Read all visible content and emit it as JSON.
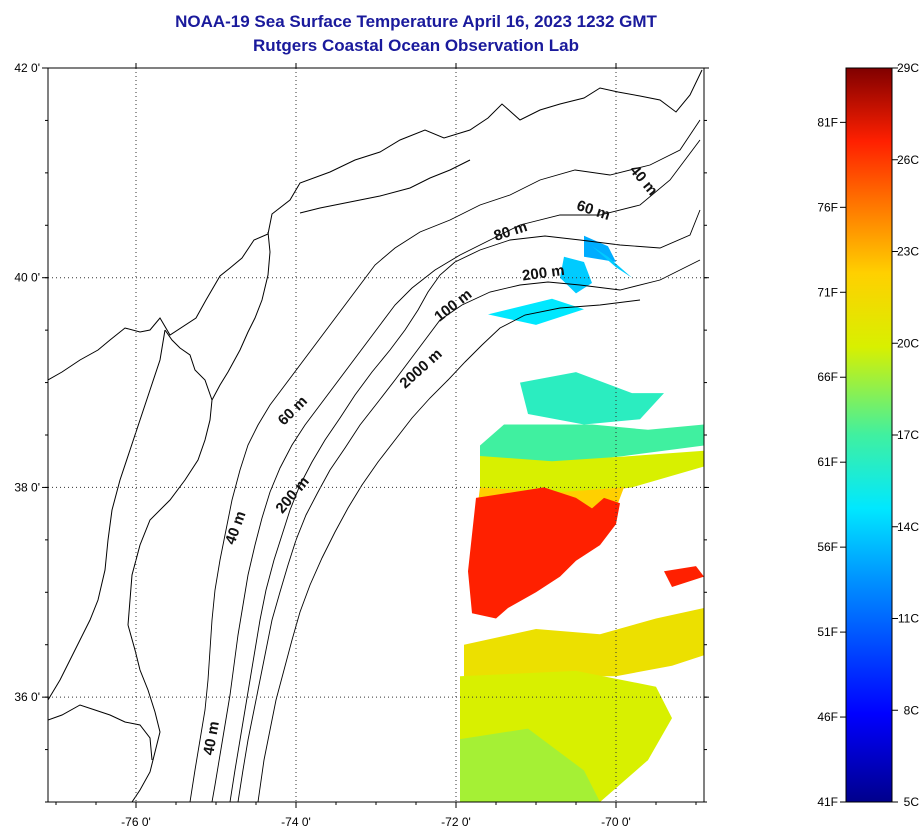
{
  "header": {
    "title": "NOAA-19 Sea Surface Temperature April 16, 2023 1232 GMT",
    "subtitle": "Rutgers Coastal Ocean Observation Lab"
  },
  "map": {
    "lon_range": [
      -77.1,
      -68.9
    ],
    "lat_range": [
      35.0,
      42.0
    ],
    "lon_ticks": [
      {
        "value": -76,
        "label": "-76 0'"
      },
      {
        "value": -74,
        "label": "-74 0'"
      },
      {
        "value": -72,
        "label": "-72 0'"
      },
      {
        "value": -70,
        "label": "-70 0'"
      }
    ],
    "lat_ticks": [
      {
        "value": 42,
        "label": "42 0'"
      },
      {
        "value": 40,
        "label": "40 0'"
      },
      {
        "value": 38,
        "label": "38 0'"
      },
      {
        "value": 36,
        "label": "36 0'"
      }
    ],
    "grid": "dotted",
    "isobath_labels": [
      {
        "text": "40 m",
        "lon": -69.7,
        "lat": 40.9,
        "rotate": 50
      },
      {
        "text": "60 m",
        "lon": -70.3,
        "lat": 40.6,
        "rotate": 18
      },
      {
        "text": "80 m",
        "lon": -71.3,
        "lat": 40.4,
        "rotate": -18
      },
      {
        "text": "200 m",
        "lon": -70.9,
        "lat": 40.0,
        "rotate": -8
      },
      {
        "text": "100 m",
        "lon": -72.0,
        "lat": 39.7,
        "rotate": -38
      },
      {
        "text": "2000 m",
        "lon": -72.4,
        "lat": 39.1,
        "rotate": -42
      },
      {
        "text": "60 m",
        "lon": -74.0,
        "lat": 38.7,
        "rotate": -45
      },
      {
        "text": "200 m",
        "lon": -74.0,
        "lat": 37.9,
        "rotate": -50
      },
      {
        "text": "40 m",
        "lon": -74.7,
        "lat": 37.6,
        "rotate": -70
      },
      {
        "text": "40 m",
        "lon": -75.0,
        "lat": 35.6,
        "rotate": -80
      }
    ],
    "sst_patches": [
      {
        "celsius": 12,
        "pts": [
          [
            -70.4,
            40.4
          ],
          [
            -70.1,
            40.3
          ],
          [
            -70.0,
            40.15
          ],
          [
            -70.4,
            40.2
          ]
        ]
      },
      {
        "celsius": 13,
        "pts": [
          [
            -70.3,
            40.3
          ],
          [
            -70.0,
            40.1
          ],
          [
            -69.8,
            40.0
          ],
          [
            -70.1,
            40.2
          ]
        ]
      },
      {
        "celsius": 13,
        "pts": [
          [
            -70.65,
            40.2
          ],
          [
            -70.4,
            40.15
          ],
          [
            -70.3,
            39.95
          ],
          [
            -70.5,
            39.85
          ],
          [
            -70.7,
            40.0
          ]
        ]
      },
      {
        "celsius": 14,
        "pts": [
          [
            -71.6,
            39.65
          ],
          [
            -70.8,
            39.8
          ],
          [
            -70.4,
            39.7
          ],
          [
            -71.0,
            39.55
          ]
        ]
      },
      {
        "celsius": 16,
        "pts": [
          [
            -71.2,
            39.0
          ],
          [
            -70.5,
            39.1
          ],
          [
            -69.8,
            38.9
          ],
          [
            -69.4,
            38.9
          ],
          [
            -69.7,
            38.65
          ],
          [
            -70.4,
            38.6
          ],
          [
            -71.1,
            38.7
          ]
        ]
      },
      {
        "celsius": 17,
        "pts": [
          [
            -71.4,
            38.6
          ],
          [
            -70.3,
            38.6
          ],
          [
            -69.6,
            38.55
          ],
          [
            -68.9,
            38.6
          ],
          [
            -68.9,
            38.4
          ],
          [
            -69.9,
            38.3
          ],
          [
            -71.0,
            38.2
          ],
          [
            -71.7,
            38.1
          ],
          [
            -71.7,
            38.4
          ]
        ]
      },
      {
        "celsius": 20,
        "pts": [
          [
            -71.7,
            38.3
          ],
          [
            -70.8,
            38.25
          ],
          [
            -69.8,
            38.3
          ],
          [
            -68.9,
            38.35
          ],
          [
            -68.9,
            38.2
          ],
          [
            -69.8,
            38.0
          ],
          [
            -70.8,
            37.9
          ],
          [
            -71.7,
            37.9
          ]
        ]
      },
      {
        "celsius": 22,
        "pts": [
          [
            -71.7,
            38.0
          ],
          [
            -70.8,
            37.95
          ],
          [
            -69.9,
            38.0
          ],
          [
            -70.0,
            37.8
          ],
          [
            -71.0,
            37.7
          ],
          [
            -71.75,
            37.7
          ]
        ]
      },
      {
        "celsius": 26,
        "pts": [
          [
            -71.75,
            37.9
          ],
          [
            -70.9,
            38.0
          ],
          [
            -70.5,
            37.9
          ],
          [
            -70.3,
            37.8
          ],
          [
            -70.15,
            37.9
          ],
          [
            -69.95,
            37.85
          ],
          [
            -70.0,
            37.65
          ],
          [
            -70.2,
            37.45
          ],
          [
            -70.5,
            37.3
          ],
          [
            -70.7,
            37.15
          ],
          [
            -71.0,
            37.0
          ],
          [
            -71.35,
            36.85
          ],
          [
            -71.5,
            36.75
          ],
          [
            -71.8,
            36.8
          ],
          [
            -71.85,
            37.2
          ]
        ]
      },
      {
        "celsius": 26,
        "pts": [
          [
            -69.4,
            37.2
          ],
          [
            -69.0,
            37.25
          ],
          [
            -68.9,
            37.15
          ],
          [
            -69.3,
            37.05
          ]
        ]
      },
      {
        "celsius": 21,
        "pts": [
          [
            -71.9,
            36.5
          ],
          [
            -71.0,
            36.65
          ],
          [
            -70.2,
            36.6
          ],
          [
            -69.5,
            36.75
          ],
          [
            -68.9,
            36.85
          ],
          [
            -68.9,
            36.4
          ],
          [
            -69.3,
            36.3
          ],
          [
            -70.0,
            36.2
          ],
          [
            -71.0,
            36.2
          ],
          [
            -71.9,
            36.2
          ]
        ]
      },
      {
        "celsius": 20,
        "pts": [
          [
            -71.95,
            36.2
          ],
          [
            -70.5,
            36.25
          ],
          [
            -69.5,
            36.1
          ],
          [
            -69.3,
            35.8
          ],
          [
            -69.6,
            35.4
          ],
          [
            -70.2,
            35.0
          ],
          [
            -71.95,
            35.0
          ]
        ]
      },
      {
        "celsius": 19,
        "pts": [
          [
            -71.95,
            35.6
          ],
          [
            -71.1,
            35.7
          ],
          [
            -70.4,
            35.3
          ],
          [
            -70.2,
            35.0
          ],
          [
            -71.95,
            35.0
          ]
        ]
      }
    ]
  },
  "colorbar": {
    "min_c": 5,
    "max_c": 29,
    "celsius_labels": [
      "29C",
      "26C",
      "23C",
      "20C",
      "17C",
      "14C",
      "11C",
      "8C",
      "5C"
    ],
    "fahrenheit_labels": [
      "81F",
      "76F",
      "71F",
      "66F",
      "61F",
      "56F",
      "51F",
      "46F",
      "41F"
    ],
    "fahrenheit_values": [
      81,
      76,
      71,
      66,
      61,
      56,
      51,
      46,
      41
    ],
    "celsius_values": [
      29,
      26,
      23,
      20,
      17,
      14,
      11,
      8,
      5
    ]
  }
}
